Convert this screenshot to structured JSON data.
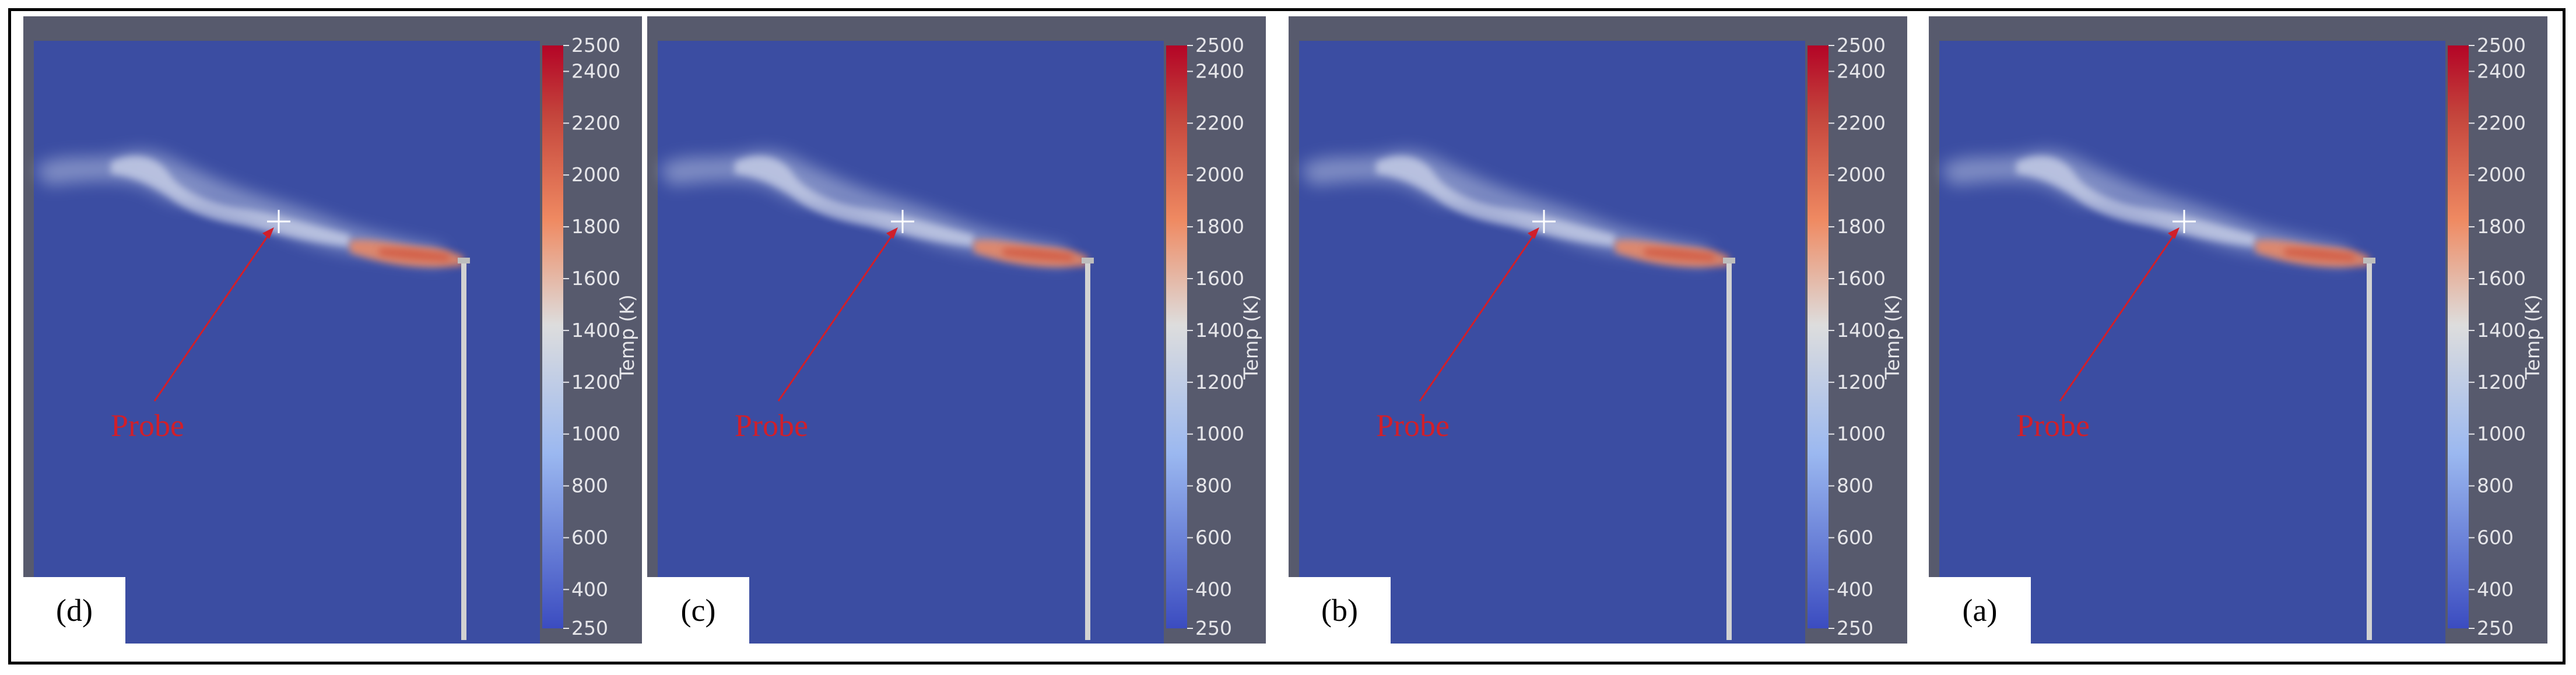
{
  "panels": [
    {
      "label": "(d)"
    },
    {
      "label": "(c)"
    },
    {
      "label": "(b)"
    },
    {
      "label": "(a)"
    }
  ],
  "probe_label": "Probe",
  "colorbar": {
    "title": "Temp (K)",
    "min": 250,
    "max": 2500,
    "ticks": [
      2500,
      2400,
      2200,
      2000,
      1800,
      1600,
      1400,
      1200,
      1000,
      800,
      600,
      400,
      250
    ],
    "colors": {
      "low": "#3b4cc0",
      "mid": "#dddddd",
      "high": "#b40426"
    }
  },
  "colors": {
    "domain": "#3b4da2",
    "background": "#575a6d",
    "probe": "#d11f2a"
  }
}
